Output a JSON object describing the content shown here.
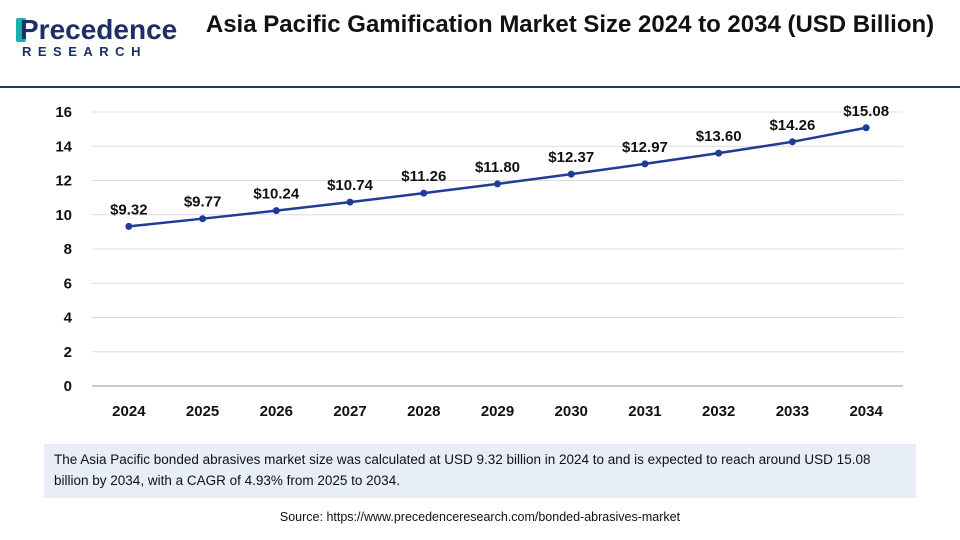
{
  "brand": {
    "name": "Precedence",
    "sub": "RESEARCH",
    "colors": {
      "primary": "#1c2f66",
      "accent": "#17b3b0"
    }
  },
  "title": "Asia Pacific Gamification Market Size 2024 to 2034 (USD Billion)",
  "note": "The Asia Pacific bonded abrasives market size was calculated at USD 9.32 billion in 2024 to and is expected to reach around USD 15.08 billion by 2034, with a CAGR of 4.93% from 2025 to 2034.",
  "source": "Source: https://www.precedenceresearch.com/bonded-abrasives-market",
  "chart_data": {
    "type": "line",
    "title": "Asia Pacific Gamification Market Size 2024 to 2034 (USD Billion)",
    "xlabel": "",
    "ylabel": "",
    "categories": [
      "2024",
      "2025",
      "2026",
      "2027",
      "2028",
      "2029",
      "2030",
      "2031",
      "2032",
      "2033",
      "2034"
    ],
    "values": [
      9.32,
      9.77,
      10.24,
      10.74,
      11.26,
      11.8,
      12.37,
      12.97,
      13.6,
      14.26,
      15.08
    ],
    "data_labels": [
      "$9.32",
      "$9.77",
      "$10.24",
      "$10.74",
      "$11.26",
      "$11.80",
      "$12.37",
      "$12.97",
      "$13.60",
      "$14.26",
      "$15.08"
    ],
    "ylim": [
      0,
      16
    ],
    "yticks": [
      0,
      2,
      4,
      6,
      8,
      10,
      12,
      14,
      16
    ],
    "grid": true,
    "legend": "none",
    "line_color": "#1f3c99"
  }
}
